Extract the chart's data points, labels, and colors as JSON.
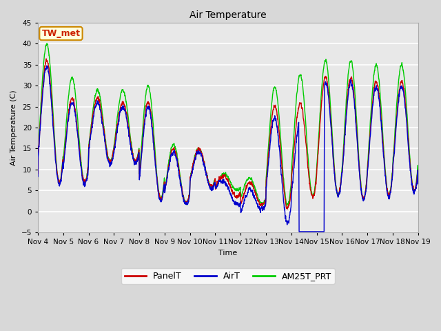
{
  "title": "Air Temperature",
  "ylabel": "Air Temperature (C)",
  "xlabel": "Time",
  "ylim": [
    -5,
    45
  ],
  "xlim": [
    0,
    15
  ],
  "plot_bg_color": "#e8e8e8",
  "fig_bg_color": "#d8d8d8",
  "grid_color": "#ffffff",
  "annotation_text": "TW_met",
  "annotation_color": "#cc2200",
  "annotation_bg": "#ffffdd",
  "annotation_border": "#cc8800",
  "panel_color": "#cc0000",
  "air_color": "#0000cc",
  "am25_color": "#00cc00",
  "lw": 1.0,
  "xtick_labels": [
    "Nov 4",
    "Nov 5",
    "Nov 6",
    "Nov 7",
    "Nov 8",
    "Nov 9",
    "Nov 10",
    "Nov 11",
    "Nov 12",
    "Nov 13",
    "Nov 14",
    "Nov 15",
    "Nov 16",
    "Nov 17",
    "Nov 18",
    "Nov 19"
  ],
  "yticks": [
    -5,
    0,
    5,
    10,
    15,
    20,
    25,
    30,
    35,
    40,
    45
  ],
  "title_fontsize": 10,
  "label_fontsize": 8,
  "tick_fontsize": 7.5,
  "legend_fontsize": 9
}
